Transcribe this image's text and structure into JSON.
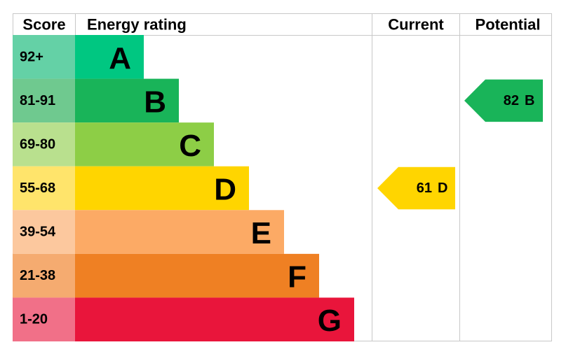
{
  "header": {
    "score": "Score",
    "energy_rating": "Energy rating",
    "current": "Current",
    "potential": "Potential"
  },
  "bands": [
    {
      "score": "92+",
      "letter": "A",
      "color": "#00c781",
      "tint": "#64d1a6"
    },
    {
      "score": "81-91",
      "letter": "B",
      "color": "#19b459",
      "tint": "#6fc98f"
    },
    {
      "score": "69-80",
      "letter": "C",
      "color": "#8dce46",
      "tint": "#b9e08e"
    },
    {
      "score": "55-68",
      "letter": "D",
      "color": "#ffd500",
      "tint": "#ffe46b"
    },
    {
      "score": "39-54",
      "letter": "E",
      "color": "#fcaa65",
      "tint": "#fcc89e"
    },
    {
      "score": "21-38",
      "letter": "F",
      "color": "#ef8023",
      "tint": "#f5ab70"
    },
    {
      "score": "1-20",
      "letter": "G",
      "color": "#e9153b",
      "tint": "#f17088"
    }
  ],
  "current": {
    "value": 61,
    "rating": "D"
  },
  "potential": {
    "value": 82,
    "rating": "B"
  }
}
